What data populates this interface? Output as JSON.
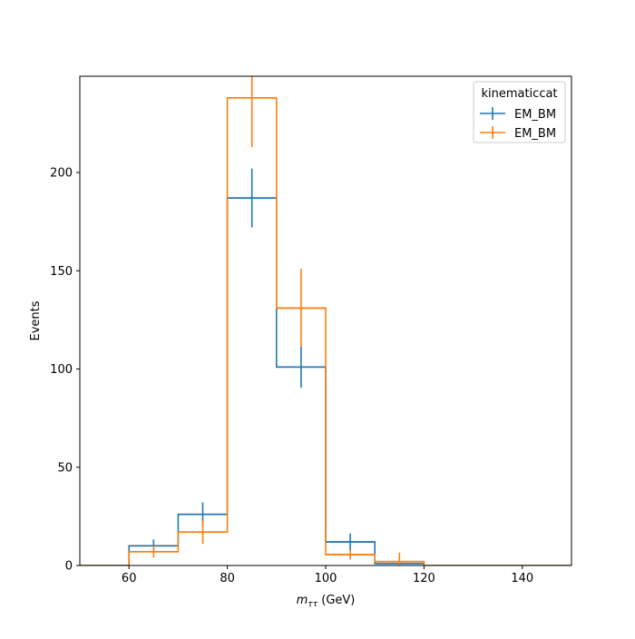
{
  "chart_data": {
    "type": "histogram-step",
    "xlabel": {
      "main": "m",
      "sub": "ττ",
      "unit": " (GeV)"
    },
    "ylabel": "Events",
    "xlim": [
      50,
      150
    ],
    "ylim": [
      0,
      249
    ],
    "xticks": [
      60,
      80,
      100,
      120,
      140
    ],
    "yticks": [
      0,
      50,
      100,
      150,
      200
    ],
    "bin_edges": [
      50,
      60,
      70,
      80,
      90,
      100,
      110,
      120,
      130,
      140,
      150
    ],
    "grid": false,
    "legend": {
      "title": "kinematiccat",
      "position": "top-right"
    },
    "series": [
      {
        "name": "EM_BM",
        "color": "#1f77b4",
        "values": [
          0,
          10,
          26,
          187,
          101,
          12,
          1,
          0,
          0,
          0
        ],
        "errors": [
          0,
          3.2,
          6.1,
          15,
          10.5,
          4.3,
          1.0,
          0,
          0,
          0
        ]
      },
      {
        "name": "EM_BM",
        "color": "#ff7f0e",
        "values": [
          0,
          7,
          17,
          238,
          131,
          5.5,
          2,
          0,
          0,
          0
        ],
        "errors": [
          0,
          3.0,
          6.0,
          25,
          20,
          2.5,
          4.5,
          0,
          0,
          0
        ]
      }
    ]
  }
}
